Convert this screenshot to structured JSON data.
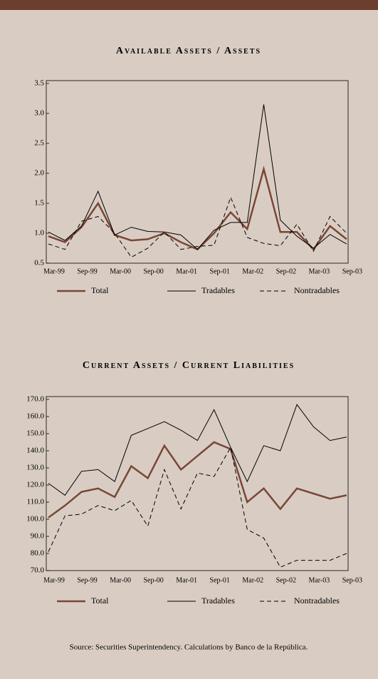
{
  "chart_data": [
    {
      "type": "line",
      "title": "Available Assets / Assets",
      "categories": [
        "Mar-99",
        null,
        "Sep-99",
        null,
        "Mar-00",
        null,
        "Sep-00",
        null,
        "Mar-01",
        null,
        "Sep-01",
        null,
        "Mar-02",
        null,
        "Sep-02",
        null,
        "Mar-03",
        null,
        "Sep-03"
      ],
      "series": [
        {
          "name": "Total",
          "color": "#7a4637",
          "line_width": 2.5,
          "line_style": "solid",
          "values": [
            0.95,
            0.85,
            1.1,
            1.5,
            0.97,
            0.88,
            0.9,
            1.0,
            0.85,
            0.73,
            1.0,
            1.35,
            1.07,
            2.07,
            1.02,
            1.02,
            0.73,
            1.12,
            0.9
          ]
        },
        {
          "name": "Tradables",
          "color": "#000000",
          "line_width": 1,
          "line_style": "solid",
          "values": [
            1.02,
            0.88,
            1.12,
            1.7,
            0.97,
            1.1,
            1.03,
            1.02,
            0.97,
            0.73,
            1.05,
            1.18,
            1.18,
            3.15,
            1.22,
            0.95,
            0.75,
            0.98,
            0.82
          ]
        },
        {
          "name": "Nontradables",
          "color": "#000000",
          "line_width": 1,
          "line_style": "dashed",
          "values": [
            0.82,
            0.73,
            1.2,
            1.28,
            1.0,
            0.6,
            0.75,
            1.02,
            0.73,
            0.78,
            0.8,
            1.6,
            0.93,
            0.83,
            0.79,
            1.15,
            0.7,
            1.28,
            1.0
          ]
        }
      ],
      "ylim": [
        0.5,
        3.5
      ],
      "yticks": [
        0.5,
        {
          "value": 1,
          "label": "1.0"
        },
        1.5,
        {
          "value": 2,
          "label": "2.0"
        },
        2.5,
        {
          "value": 3,
          "label": "3.0"
        },
        3.5
      ]
    },
    {
      "type": "line",
      "title": "Current Assets / Current Liabilities",
      "categories": [
        "Mar-99",
        null,
        "Sep-99",
        null,
        "Mar-00",
        null,
        "Sep-00",
        null,
        "Mar-01",
        null,
        "Sep-01",
        null,
        "Mar-02",
        null,
        "Sep-02",
        null,
        "Mar-03",
        null,
        "Sep-03"
      ],
      "series": [
        {
          "name": "Total",
          "color": "#7a4637",
          "line_width": 2.5,
          "line_style": "solid",
          "values": [
            101,
            108,
            116,
            118,
            113,
            131,
            124,
            143,
            129,
            137,
            145,
            141,
            110,
            118,
            106,
            118,
            115,
            112,
            114
          ]
        },
        {
          "name": "Tradables",
          "color": "#000000",
          "line_width": 1,
          "line_style": "solid",
          "values": [
            121,
            114,
            128,
            129,
            122,
            149,
            153,
            157,
            152,
            146,
            164,
            142,
            122,
            143,
            140,
            167,
            154,
            146,
            148
          ]
        },
        {
          "name": "Nontradables",
          "color": "#000000",
          "line_width": 1,
          "line_style": "dashed",
          "values": [
            81,
            102,
            103,
            108,
            105,
            111,
            96,
            129,
            106,
            127,
            125,
            142,
            94,
            89,
            72,
            76,
            76,
            76,
            80
          ]
        }
      ],
      "ylim": [
        70,
        170
      ],
      "yticks": [
        {
          "value": 70,
          "label": "70.0"
        },
        {
          "value": 80,
          "label": "80.0"
        },
        {
          "value": 90,
          "label": "90.0"
        },
        {
          "value": 100,
          "label": "100.0"
        },
        {
          "value": 110,
          "label": "110.0"
        },
        {
          "value": 120,
          "label": "120.0"
        },
        {
          "value": 130,
          "label": "130.0"
        },
        {
          "value": 140,
          "label": "140.0"
        },
        {
          "value": 150,
          "label": "150.0"
        },
        {
          "value": 160,
          "label": "160.0"
        },
        {
          "value": 170,
          "label": "170.0"
        }
      ]
    }
  ],
  "source": "Source: Securities Superintendency.  Calculations by Banco de la República."
}
